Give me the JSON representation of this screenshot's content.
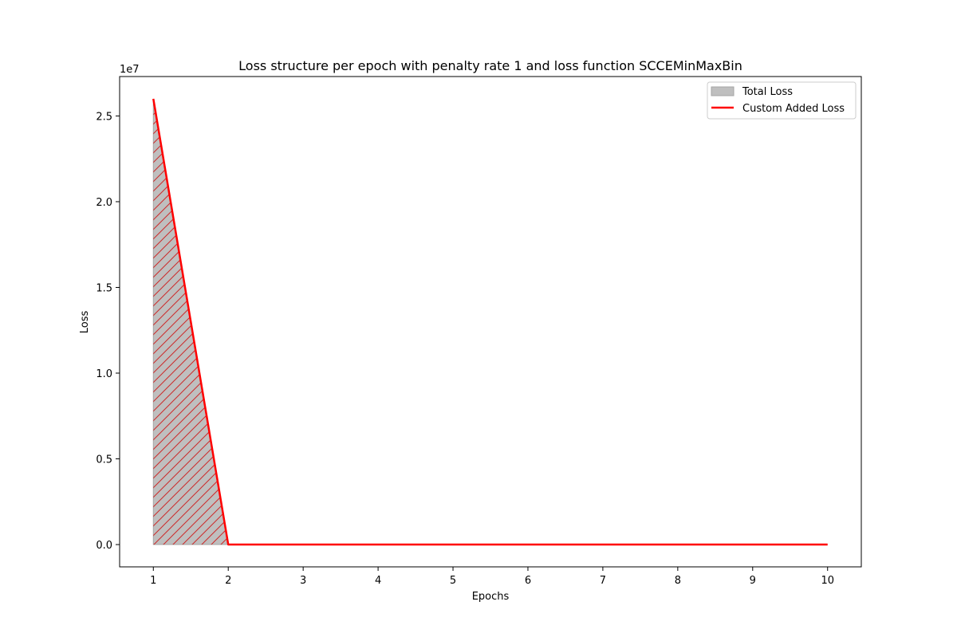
{
  "chart_data": {
    "type": "area",
    "title": "Loss structure per epoch with penalty rate 1 and loss function SCCEMinMaxBin",
    "xlabel": "Epochs",
    "ylabel": "Loss",
    "y_offset_label": "1e7",
    "x": [
      1,
      2,
      3,
      4,
      5,
      6,
      7,
      8,
      9,
      10
    ],
    "xlim": [
      0.55,
      10.45
    ],
    "ylim": [
      -1300000,
      27300000
    ],
    "x_ticks": [
      1,
      2,
      3,
      4,
      5,
      6,
      7,
      8,
      9,
      10
    ],
    "x_tick_labels": [
      "1",
      "2",
      "3",
      "4",
      "5",
      "6",
      "7",
      "8",
      "9",
      "10"
    ],
    "y_ticks": [
      0,
      5000000,
      10000000,
      15000000,
      20000000,
      25000000
    ],
    "y_tick_labels": [
      "0.0",
      "0.5",
      "1.0",
      "1.5",
      "2.0",
      "2.5"
    ],
    "grid": false,
    "legend_position": "top-right",
    "series": [
      {
        "name": "Total Loss",
        "kind": "area",
        "color": "#bfbfbf",
        "edge_color": "#a6a6a6",
        "hatch": "///",
        "hatch_color": "#cc2a2a",
        "values": [
          26000000,
          0,
          0,
          0,
          0,
          0,
          0,
          0,
          0,
          0
        ]
      },
      {
        "name": "Custom Added Loss",
        "kind": "line",
        "color": "#ff0000",
        "values": [
          26000000,
          0,
          0,
          0,
          0,
          0,
          0,
          0,
          0,
          0
        ]
      }
    ]
  }
}
